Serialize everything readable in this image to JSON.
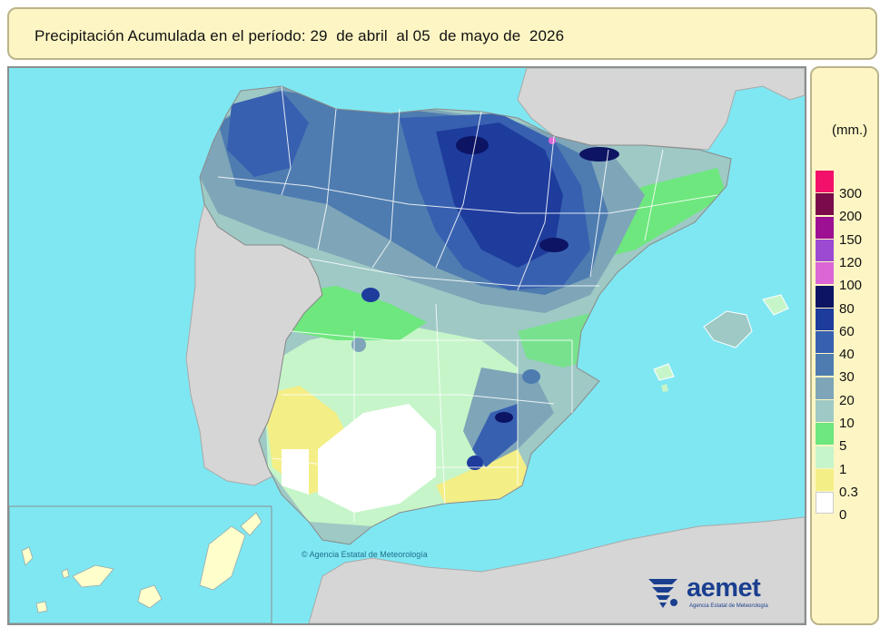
{
  "title": "Precipitación Acumulada en el período: 29  de abril  al 05  de mayo de  2026",
  "legend": {
    "unit": "(mm.)",
    "classes": [
      {
        "label": "300",
        "color": "#f2106a"
      },
      {
        "label": "200",
        "color": "#7a0a4a"
      },
      {
        "label": "150",
        "color": "#9d0f93"
      },
      {
        "label": "120",
        "color": "#9b4ad1"
      },
      {
        "label": "100",
        "color": "#db66d6"
      },
      {
        "label": "80",
        "color": "#0c1463"
      },
      {
        "label": "60",
        "color": "#1e3c9c"
      },
      {
        "label": "40",
        "color": "#3860b0"
      },
      {
        "label": "30",
        "color": "#4e7cb0"
      },
      {
        "label": "20",
        "color": "#7ea6b8"
      },
      {
        "label": "10",
        "color": "#9ec9c5"
      },
      {
        "label": "5",
        "color": "#6ee77e"
      },
      {
        "label": "1",
        "color": "#c6f5c9"
      },
      {
        "label": "0.3",
        "color": "#f4ee86"
      },
      {
        "label": "0",
        "color": "#ffffff"
      }
    ]
  },
  "map": {
    "sea_color": "#7fe7f2",
    "land_outside_color": "#d6d6d6",
    "border_color": "#ffffff"
  },
  "copyright": "Agencia Estatal de Meteorología",
  "logo": {
    "name": "aemet",
    "subtitle": "Agencia Estatal de Meteorología"
  }
}
